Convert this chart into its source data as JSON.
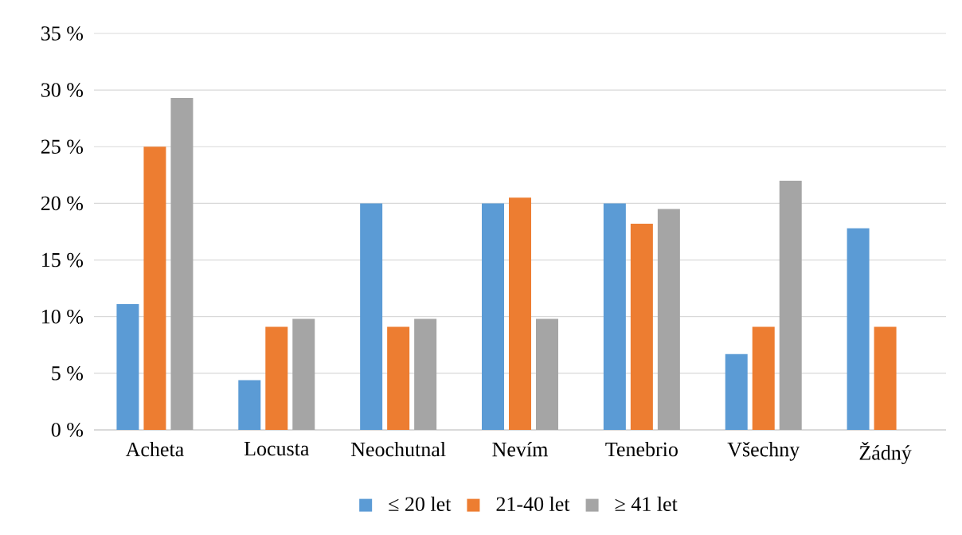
{
  "chart_data": {
    "type": "bar",
    "categories": [
      "Acheta",
      "Locusta",
      "Neochutnal",
      "Nevím",
      "Tenebrio",
      "Všechny",
      "Žádný"
    ],
    "series": [
      {
        "name": "≤ 20 let",
        "color": "#5b9bd5",
        "values": [
          11.1,
          4.4,
          20,
          20,
          20,
          6.7,
          17.8
        ]
      },
      {
        "name": "21-40 let",
        "color": "#ed7d31",
        "values": [
          25,
          9.1,
          9.1,
          20.5,
          18.2,
          9.1,
          9.1
        ]
      },
      {
        "name": "≥ 41 let",
        "color": "#a5a5a5",
        "values": [
          29.3,
          9.8,
          9.8,
          9.8,
          19.5,
          22.0,
          0
        ]
      }
    ],
    "ylim": [
      0,
      35
    ],
    "yticks": [
      {
        "value": 0,
        "label": "0 %"
      },
      {
        "value": 5,
        "label": "5 %"
      },
      {
        "value": 10,
        "label": "10 %"
      },
      {
        "value": 15,
        "label": "15 %"
      },
      {
        "value": 20,
        "label": "20 %"
      },
      {
        "value": 25,
        "label": "25 %"
      },
      {
        "value": 30,
        "label": "30 %"
      },
      {
        "value": 35,
        "label": "35 %"
      }
    ],
    "grid": "y",
    "legend": "bottom"
  }
}
